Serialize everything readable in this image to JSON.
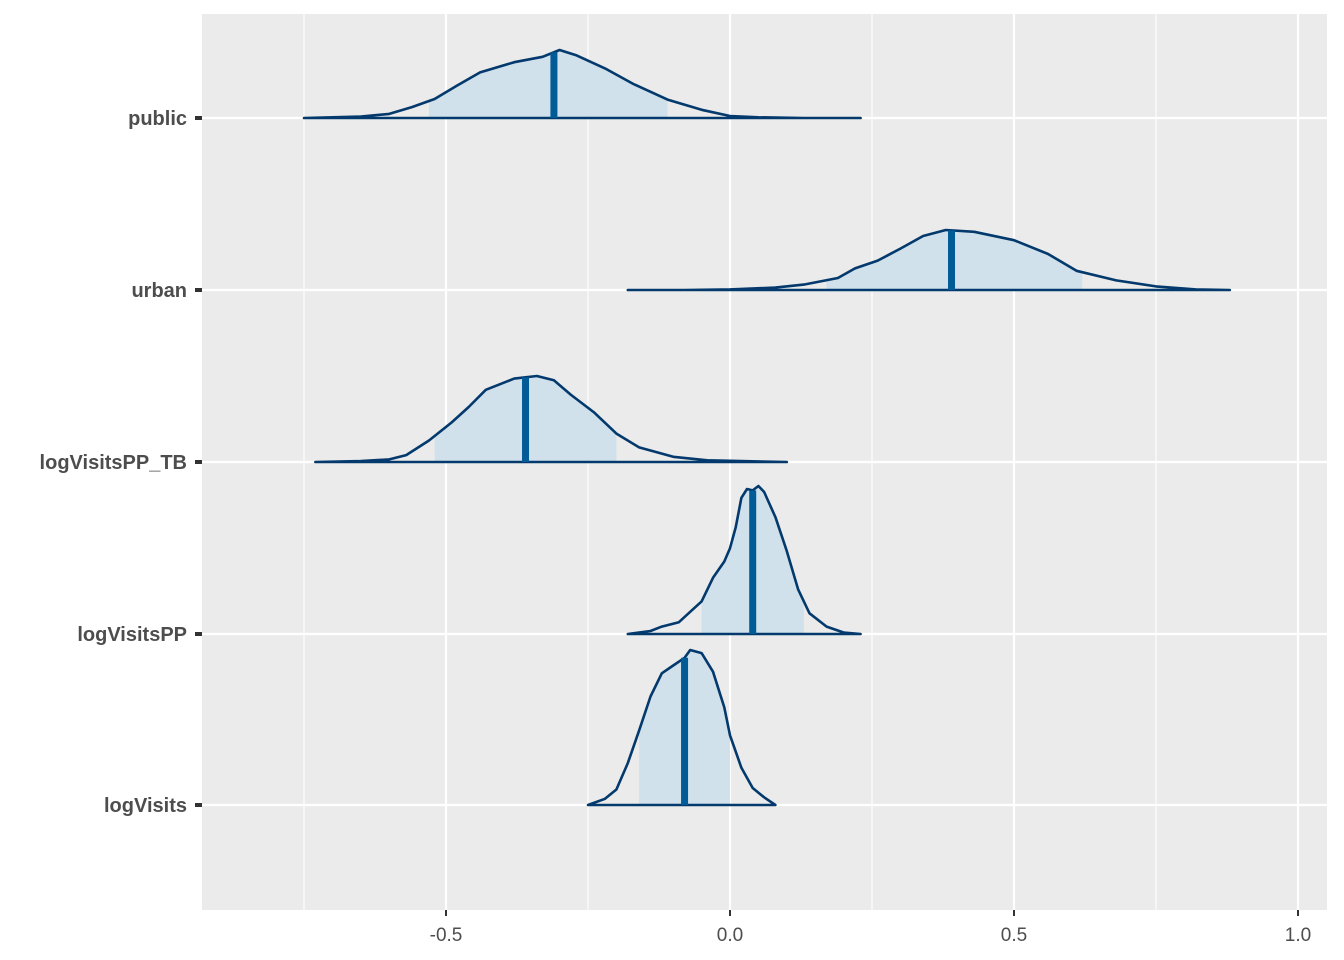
{
  "chart_data": {
    "type": "area",
    "subtype": "ridgeline-density",
    "title": "",
    "xlabel": "",
    "ylabel": "",
    "xlim": [
      -0.93,
      1.05
    ],
    "x_ticks": [
      -0.5,
      0.0,
      0.5,
      1.0
    ],
    "x_tick_labels": [
      "-0.5",
      "0.0",
      "0.5",
      "1.0"
    ],
    "grid": true,
    "legend": "none",
    "colors": {
      "panel": "#ebebeb",
      "grid": "#ffffff",
      "fill": "#d1e1ec",
      "outline": "#03396c",
      "median_line": "#005b96",
      "axis_text": "#4d4d4d"
    },
    "series": [
      {
        "name": "public",
        "median": -0.31,
        "interval": [
          -0.53,
          -0.11
        ],
        "density": [
          [
            -0.75,
            0
          ],
          [
            -0.65,
            0.02
          ],
          [
            -0.6,
            0.06
          ],
          [
            -0.56,
            0.16
          ],
          [
            -0.52,
            0.28
          ],
          [
            -0.48,
            0.48
          ],
          [
            -0.44,
            0.67
          ],
          [
            -0.38,
            0.82
          ],
          [
            -0.33,
            0.9
          ],
          [
            -0.3,
            1.0
          ],
          [
            -0.27,
            0.92
          ],
          [
            -0.22,
            0.73
          ],
          [
            -0.17,
            0.5
          ],
          [
            -0.11,
            0.27
          ],
          [
            -0.05,
            0.12
          ],
          [
            0.0,
            0.03
          ],
          [
            0.05,
            0.01
          ],
          [
            0.13,
            0.0
          ],
          [
            0.23,
            0
          ]
        ]
      },
      {
        "name": "urban",
        "median": 0.39,
        "interval": [
          0.17,
          0.62
        ],
        "density": [
          [
            -0.18,
            0
          ],
          [
            -0.08,
            0
          ],
          [
            0.0,
            0.01
          ],
          [
            0.08,
            0.04
          ],
          [
            0.13,
            0.09
          ],
          [
            0.19,
            0.2
          ],
          [
            0.22,
            0.36
          ],
          [
            0.26,
            0.49
          ],
          [
            0.3,
            0.69
          ],
          [
            0.34,
            0.9
          ],
          [
            0.38,
            1.0
          ],
          [
            0.43,
            0.97
          ],
          [
            0.5,
            0.83
          ],
          [
            0.56,
            0.6
          ],
          [
            0.61,
            0.32
          ],
          [
            0.68,
            0.16
          ],
          [
            0.75,
            0.06
          ],
          [
            0.82,
            0.01
          ],
          [
            0.88,
            0
          ]
        ]
      },
      {
        "name": "logVisitsPP_TB",
        "median": -0.36,
        "interval": [
          -0.52,
          -0.2
        ],
        "density": [
          [
            -0.73,
            0
          ],
          [
            -0.65,
            0.01
          ],
          [
            -0.6,
            0.03
          ],
          [
            -0.57,
            0.08
          ],
          [
            -0.53,
            0.25
          ],
          [
            -0.49,
            0.46
          ],
          [
            -0.46,
            0.64
          ],
          [
            -0.43,
            0.84
          ],
          [
            -0.38,
            0.97
          ],
          [
            -0.34,
            1.0
          ],
          [
            -0.31,
            0.95
          ],
          [
            -0.28,
            0.78
          ],
          [
            -0.24,
            0.58
          ],
          [
            -0.2,
            0.33
          ],
          [
            -0.16,
            0.17
          ],
          [
            -0.1,
            0.06
          ],
          [
            -0.04,
            0.02
          ],
          [
            0.02,
            0.01
          ],
          [
            0.1,
            0
          ]
        ]
      },
      {
        "name": "logVisitsPP",
        "median": 0.04,
        "interval": [
          -0.05,
          0.13
        ],
        "density": [
          [
            -0.18,
            0
          ],
          [
            -0.14,
            0.02
          ],
          [
            -0.12,
            0.05
          ],
          [
            -0.09,
            0.08
          ],
          [
            -0.07,
            0.15
          ],
          [
            -0.05,
            0.22
          ],
          [
            -0.03,
            0.38
          ],
          [
            -0.01,
            0.49
          ],
          [
            0.0,
            0.58
          ],
          [
            0.01,
            0.72
          ],
          [
            0.02,
            0.92
          ],
          [
            0.03,
            0.98
          ],
          [
            0.04,
            0.97
          ],
          [
            0.05,
            1.0
          ],
          [
            0.06,
            0.96
          ],
          [
            0.08,
            0.79
          ],
          [
            0.1,
            0.56
          ],
          [
            0.12,
            0.3
          ],
          [
            0.14,
            0.14
          ],
          [
            0.17,
            0.05
          ],
          [
            0.2,
            0.01
          ],
          [
            0.23,
            0
          ]
        ]
      },
      {
        "name": "logVisits",
        "median": -0.08,
        "interval": [
          -0.16,
          0.0
        ],
        "density": [
          [
            -0.25,
            0
          ],
          [
            -0.22,
            0.04
          ],
          [
            -0.2,
            0.1
          ],
          [
            -0.18,
            0.27
          ],
          [
            -0.16,
            0.48
          ],
          [
            -0.14,
            0.7
          ],
          [
            -0.12,
            0.85
          ],
          [
            -0.1,
            0.9
          ],
          [
            -0.08,
            0.95
          ],
          [
            -0.07,
            1.0
          ],
          [
            -0.05,
            0.98
          ],
          [
            -0.03,
            0.86
          ],
          [
            -0.01,
            0.63
          ],
          [
            0.0,
            0.45
          ],
          [
            0.02,
            0.24
          ],
          [
            0.04,
            0.11
          ],
          [
            0.06,
            0.05
          ],
          [
            0.08,
            0
          ]
        ]
      }
    ]
  }
}
